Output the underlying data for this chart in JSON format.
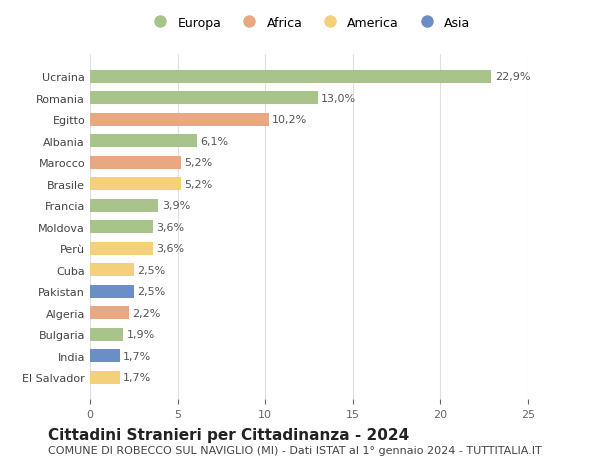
{
  "countries": [
    "El Salvador",
    "India",
    "Bulgaria",
    "Algeria",
    "Pakistan",
    "Cuba",
    "Perù",
    "Moldova",
    "Francia",
    "Brasile",
    "Marocco",
    "Albania",
    "Egitto",
    "Romania",
    "Ucraina"
  ],
  "values": [
    1.7,
    1.7,
    1.9,
    2.2,
    2.5,
    2.5,
    3.6,
    3.6,
    3.9,
    5.2,
    5.2,
    6.1,
    10.2,
    13.0,
    22.9
  ],
  "labels": [
    "1,7%",
    "1,7%",
    "1,9%",
    "2,2%",
    "2,5%",
    "2,5%",
    "3,6%",
    "3,6%",
    "3,9%",
    "5,2%",
    "5,2%",
    "6,1%",
    "10,2%",
    "13,0%",
    "22,9%"
  ],
  "continents": [
    "America",
    "Asia",
    "Europa",
    "Africa",
    "Asia",
    "America",
    "America",
    "Europa",
    "Europa",
    "America",
    "Africa",
    "Europa",
    "Africa",
    "Europa",
    "Europa"
  ],
  "colors": {
    "Europa": "#a8c48a",
    "Africa": "#e8a882",
    "America": "#f5d07a",
    "Asia": "#6b8fc4"
  },
  "legend_order": [
    "Europa",
    "Africa",
    "America",
    "Asia"
  ],
  "title": "Cittadini Stranieri per Cittadinanza - 2024",
  "subtitle": "COMUNE DI ROBECCO SUL NAVIGLIO (MI) - Dati ISTAT al 1° gennaio 2024 - TUTTITALIA.IT",
  "xlim": [
    0,
    25
  ],
  "xticks": [
    0,
    5,
    10,
    15,
    20,
    25
  ],
  "background_color": "#ffffff",
  "grid_color": "#e0e0e0",
  "title_fontsize": 11,
  "subtitle_fontsize": 8,
  "label_fontsize": 8,
  "tick_fontsize": 8
}
